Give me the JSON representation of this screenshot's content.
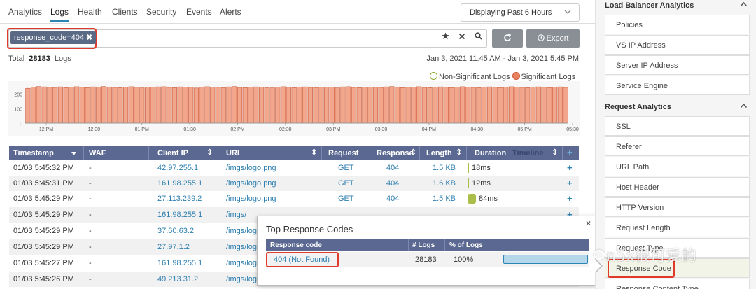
{
  "tabs": [
    {
      "label": "Analytics"
    },
    {
      "label": "Logs"
    },
    {
      "label": "Health"
    },
    {
      "label": "Clients"
    },
    {
      "label": "Security"
    },
    {
      "label": "Events"
    },
    {
      "label": "Alerts"
    }
  ],
  "active_tab": "Logs",
  "time_range_select": {
    "value": "Displaying Past 6 Hours",
    "icon": "chevron-down-icon"
  },
  "search": {
    "filter_pill": "response_code=404",
    "pill_close": "✖",
    "icons": [
      "star-icon",
      "close-icon",
      "search-icon"
    ]
  },
  "toolbar": {
    "refresh_icon": "refresh-icon",
    "export_label": "Export"
  },
  "summary": {
    "total_label": "Total",
    "total_count": "28183",
    "logs_label": "Logs",
    "date_range": "Jan 3, 2021 11:45 AM - Jan 3, 2021 5:45 PM"
  },
  "legend": {
    "non_significant": "Non-Significant Logs",
    "significant": "Significant Logs",
    "non_significant_color": "#8aa82a",
    "significant_color": "#e8825f"
  },
  "chart_data": {
    "type": "bar",
    "y_ticks": [
      "200",
      "100",
      "0"
    ],
    "x_ticks": [
      "12 PM",
      "12:30",
      "01 PM",
      "01:30",
      "02 PM",
      "02:30",
      "03 PM",
      "03:30",
      "04 PM",
      "04:30",
      "05 PM",
      "05:30"
    ],
    "ylim": [
      0,
      270
    ],
    "values": [
      240,
      248,
      252,
      250,
      247,
      246,
      250,
      244,
      249,
      251,
      247,
      245,
      250,
      248,
      252,
      249,
      246,
      244,
      249,
      251,
      247,
      243,
      249,
      248,
      250,
      251,
      246,
      244,
      250,
      249,
      247,
      242,
      248,
      251,
      249,
      247,
      245,
      250,
      252,
      246,
      244,
      248,
      250,
      249,
      245,
      243,
      249,
      251,
      247,
      244,
      248,
      250,
      246,
      245,
      247,
      249,
      248,
      243,
      250,
      251,
      246,
      244,
      248,
      249,
      247,
      246,
      250,
      252,
      248,
      244,
      247,
      249,
      251,
      246,
      244,
      249,
      250,
      247,
      245,
      248,
      251,
      249,
      246,
      244,
      248,
      250,
      247,
      245,
      249,
      251,
      248,
      246,
      244,
      249,
      250,
      247,
      245,
      248,
      250,
      246
    ]
  },
  "table": {
    "headers": [
      "Timestamp",
      "WAF",
      "Client IP",
      "URI",
      "Request",
      "Response",
      "Length",
      "Duration",
      "Timeline"
    ],
    "rows": [
      {
        "ts": "01/03 5:45:32 PM",
        "waf": "-",
        "ip": "42.97.255.1",
        "uri": "/imgs/logo.png",
        "req": "GET",
        "resp": "404",
        "len": "1.5 KB",
        "dur": "18ms",
        "dur_ms": 18
      },
      {
        "ts": "01/03 5:45:31 PM",
        "waf": "-",
        "ip": "161.98.255.1",
        "uri": "/imgs/logo.png",
        "req": "GET",
        "resp": "404",
        "len": "1.6 KB",
        "dur": "12ms",
        "dur_ms": 12
      },
      {
        "ts": "01/03 5:45:29 PM",
        "waf": "-",
        "ip": "27.113.239.2",
        "uri": "/imgs/logo.png",
        "req": "GET",
        "resp": "404",
        "len": "1.5 KB",
        "dur": "84ms",
        "dur_ms": 84
      },
      {
        "ts": "01/03 5:45:29 PM",
        "waf": "-",
        "ip": "161.98.255.1",
        "uri": "/imgs/",
        "req": "",
        "resp": "",
        "len": "",
        "dur": "",
        "dur_ms": 0
      },
      {
        "ts": "01/03 5:45:29 PM",
        "waf": "-",
        "ip": "37.60.63.2",
        "uri": "/imgs/logo",
        "req": "",
        "resp": "",
        "len": "",
        "dur": "",
        "dur_ms": 0
      },
      {
        "ts": "01/03 5:45:29 PM",
        "waf": "-",
        "ip": "27.97.1.2",
        "uri": "/imgs/logo",
        "req": "",
        "resp": "",
        "len": "",
        "dur": "",
        "dur_ms": 0
      },
      {
        "ts": "01/03 5:45:27 PM",
        "waf": "-",
        "ip": "161.98.255.1",
        "uri": "/imgs/logo",
        "req": "",
        "resp": "",
        "len": "",
        "dur": "",
        "dur_ms": 0
      },
      {
        "ts": "01/03 5:45:26 PM",
        "waf": "-",
        "ip": "49.213.31.2",
        "uri": "/imgs/logo",
        "req": "",
        "resp": "",
        "len": "",
        "dur": "",
        "dur_ms": 0
      }
    ],
    "add_icon": "plus-icon"
  },
  "popover": {
    "title": "Top Response Codes",
    "close": "×",
    "headers": [
      "Response code",
      "# Logs",
      "% of Logs"
    ],
    "row": {
      "code": "404 (Not Found)",
      "count": "28183",
      "percent": "100%",
      "fraction": 1.0
    }
  },
  "sidebar": {
    "lb_section": "Load Balancer Analytics",
    "lb_items": [
      "Policies",
      "VS IP Address",
      "Server IP Address",
      "Service Engine"
    ],
    "req_section": "Request Analytics",
    "req_items": [
      "SSL",
      "Referer",
      "URL Path",
      "Host Header",
      "HTTP Version",
      "Request Length",
      "Request Type",
      "Response Code",
      "Response Content Type"
    ],
    "caret_icon": "chevron-up-icon"
  },
  "watermark": "n5x很可爱的"
}
